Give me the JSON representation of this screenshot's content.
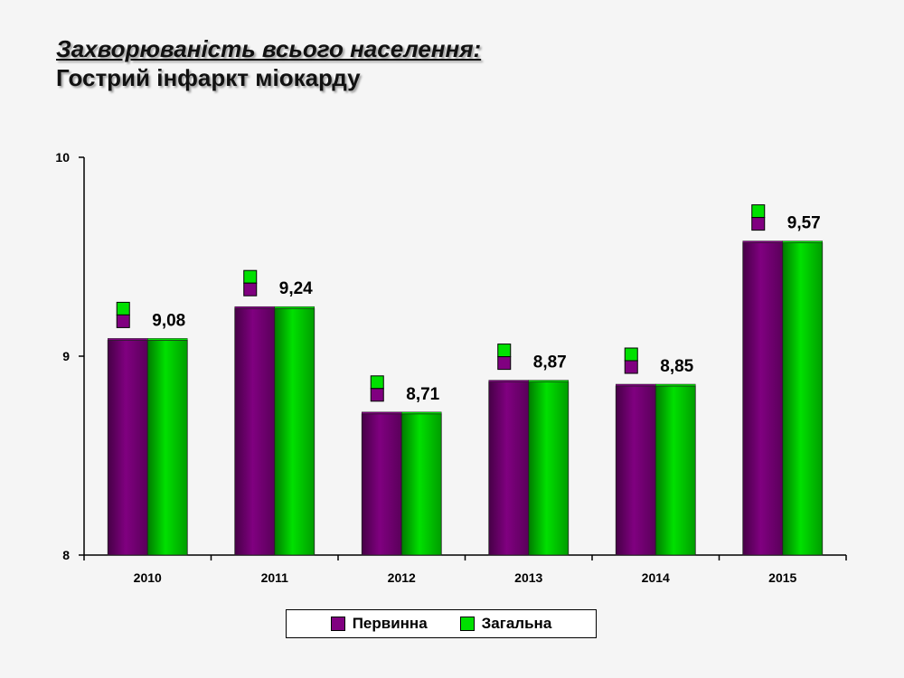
{
  "title": {
    "line1": "Захворюваність всього населення:",
    "line2": "Гострий інфаркт міокарду"
  },
  "chart_data": {
    "type": "bar",
    "categories": [
      "2010",
      "2011",
      "2012",
      "2013",
      "2014",
      "2015"
    ],
    "series": [
      {
        "name": "Первинна",
        "values": [
          9.08,
          9.24,
          8.71,
          8.87,
          8.85,
          9.57
        ],
        "color": "#800080"
      },
      {
        "name": "Загальна",
        "values": [
          9.08,
          9.24,
          8.71,
          8.87,
          8.85,
          9.57
        ],
        "color": "#00e000"
      }
    ],
    "data_labels": [
      "9,08",
      "9,24",
      "8,71",
      "8,87",
      "8,85",
      "9,57"
    ],
    "y_ticks": [
      "8",
      "9",
      "10"
    ],
    "ylim": [
      8,
      10
    ],
    "xlabel": "",
    "ylabel": "",
    "grid": false,
    "legend_position": "bottom"
  }
}
